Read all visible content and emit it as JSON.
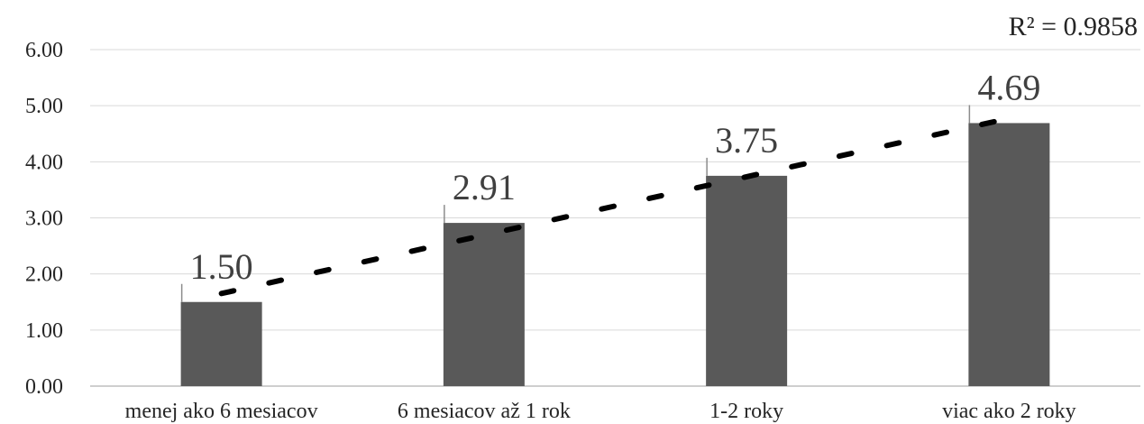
{
  "chart_data": {
    "type": "bar",
    "title": "",
    "xlabel": "",
    "ylabel": "",
    "categories": [
      "menej ako 6 mesiacov",
      "6 mesiacov až 1 rok",
      "1-2 roky",
      "viac ako 2 roky"
    ],
    "values": [
      1.5,
      2.91,
      3.75,
      4.69
    ],
    "value_labels": [
      "1.50",
      "2.91",
      "3.75",
      "4.69"
    ],
    "ylim": [
      0,
      6
    ],
    "yticks": [
      "0.00",
      "1.00",
      "2.00",
      "3.00",
      "4.00",
      "5.00",
      "6.00"
    ],
    "grid": true,
    "trendline": {
      "type": "linear",
      "style": "dotted",
      "r2_label": "R² = 0.9858"
    },
    "colors": {
      "bar": "#595959",
      "trendline": "#000000",
      "grid": "#d9d9d9",
      "axis": "#bfbfbf"
    }
  }
}
